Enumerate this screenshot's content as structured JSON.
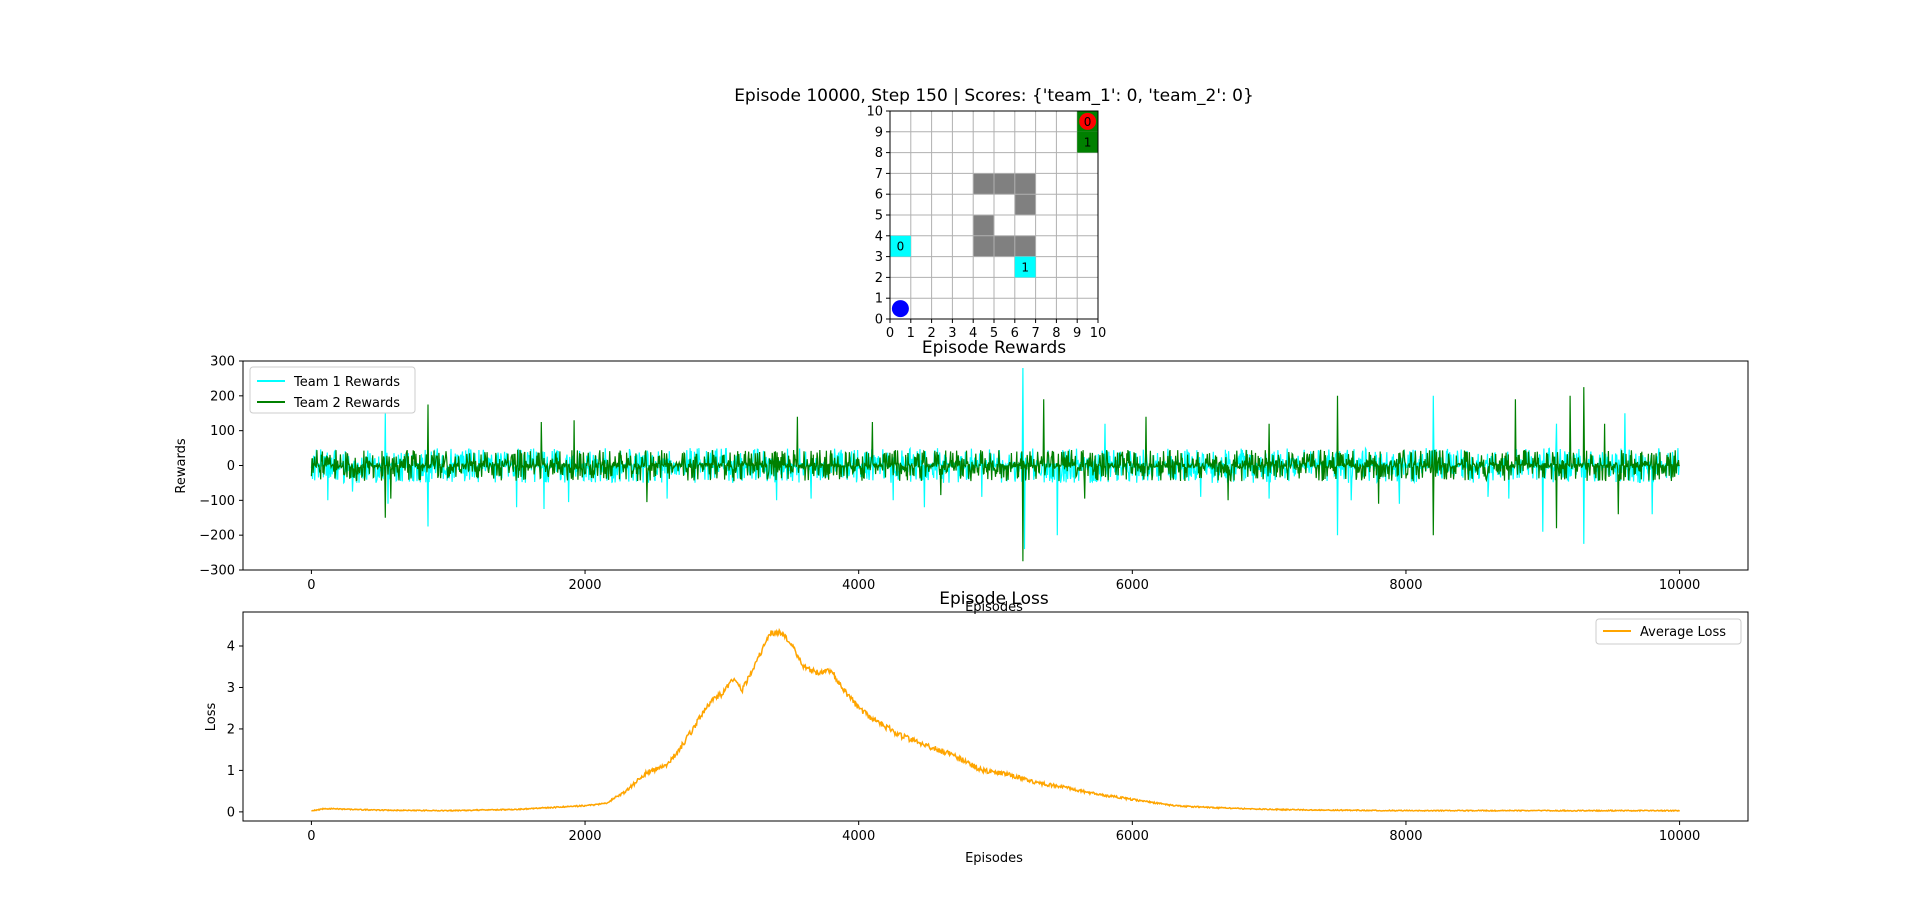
{
  "figure": {
    "grid_title": "Episode 10000, Step 150 | Scores: {'team_1': 0, 'team_2': 0}"
  },
  "chart_data": [
    {
      "type": "heatmap",
      "title": "Episode 10000, Step 150 | Scores: {'team_1': 0, 'team_2': 0}",
      "xlim": [
        0,
        10
      ],
      "ylim": [
        0,
        10
      ],
      "ticks": [
        "0",
        "1",
        "2",
        "3",
        "4",
        "5",
        "6",
        "7",
        "8",
        "9",
        "10"
      ],
      "grid": true,
      "obstacles": [
        [
          4,
          6
        ],
        [
          5,
          6
        ],
        [
          6,
          6
        ],
        [
          6,
          5
        ],
        [
          4,
          4
        ],
        [
          4,
          3
        ],
        [
          5,
          3
        ],
        [
          6,
          3
        ]
      ],
      "team_1_agents": [
        {
          "label": "0",
          "cell": [
            0,
            3
          ],
          "color": "#00ffff"
        },
        {
          "label": "1",
          "cell": [
            6,
            2
          ],
          "color": "#00ffff"
        }
      ],
      "team_2_agents": [
        {
          "label": "0",
          "cell": [
            9,
            9
          ],
          "color": "#008000",
          "marker_color": "#ff0000"
        },
        {
          "label": "1",
          "cell": [
            9,
            8
          ],
          "color": "#008000"
        }
      ],
      "ball": {
        "x": 0.5,
        "y": 0.5,
        "color": "#0000ff"
      }
    },
    {
      "type": "line",
      "title": "Episode Rewards",
      "xlabel": "Episodes",
      "ylabel": "Rewards",
      "xlim": [
        -500,
        10500
      ],
      "ylim": [
        -300,
        300
      ],
      "xticks": [
        0,
        2000,
        4000,
        6000,
        8000,
        10000
      ],
      "yticks": [
        -300,
        -200,
        -100,
        0,
        100,
        200,
        300
      ],
      "ytick_labels": [
        "−300",
        "−200",
        "−100",
        "0",
        "100",
        "200",
        "300"
      ],
      "legend": "top-left",
      "n_episodes": 10000,
      "series": [
        {
          "name": "Team 1 Rewards",
          "color": "#00ffff",
          "typical_range": [
            -50,
            50
          ],
          "spikes": [
            [
              120,
              -100
            ],
            [
              300,
              -75
            ],
            [
              540,
              150
            ],
            [
              560,
              -110
            ],
            [
              850,
              -175
            ],
            [
              1500,
              -120
            ],
            [
              1700,
              -125
            ],
            [
              1880,
              -105
            ],
            [
              2600,
              -95
            ],
            [
              3400,
              -100
            ],
            [
              3650,
              -95
            ],
            [
              4250,
              -100
            ],
            [
              4480,
              -120
            ],
            [
              4900,
              -90
            ],
            [
              5200,
              280
            ],
            [
              5210,
              -240
            ],
            [
              5450,
              -200
            ],
            [
              5800,
              120
            ],
            [
              6500,
              -90
            ],
            [
              7000,
              -95
            ],
            [
              7500,
              -200
            ],
            [
              7600,
              -100
            ],
            [
              7950,
              -110
            ],
            [
              8200,
              200
            ],
            [
              8600,
              -90
            ],
            [
              8750,
              -95
            ],
            [
              9000,
              -190
            ],
            [
              9100,
              120
            ],
            [
              9300,
              -225
            ],
            [
              9600,
              150
            ],
            [
              9800,
              -140
            ]
          ]
        },
        {
          "name": "Team 2 Rewards",
          "color": "#008000",
          "typical_range": [
            -45,
            45
          ],
          "spikes": [
            [
              540,
              -150
            ],
            [
              580,
              -95
            ],
            [
              850,
              175
            ],
            [
              1680,
              125
            ],
            [
              1920,
              130
            ],
            [
              2450,
              -105
            ],
            [
              3550,
              140
            ],
            [
              4100,
              125
            ],
            [
              4600,
              -85
            ],
            [
              5200,
              -275
            ],
            [
              5350,
              190
            ],
            [
              5650,
              -95
            ],
            [
              6100,
              140
            ],
            [
              6700,
              -100
            ],
            [
              7000,
              120
            ],
            [
              7500,
              200
            ],
            [
              7800,
              -110
            ],
            [
              8200,
              -200
            ],
            [
              8800,
              190
            ],
            [
              9100,
              -180
            ],
            [
              9200,
              200
            ],
            [
              9300,
              225
            ],
            [
              9450,
              120
            ],
            [
              9550,
              -140
            ]
          ]
        }
      ]
    },
    {
      "type": "line",
      "title": "Episode Loss",
      "xlabel": "Episodes",
      "ylabel": "Loss",
      "xlim": [
        -500,
        10500
      ],
      "ylim": [
        -0.22,
        4.82
      ],
      "xticks": [
        0,
        2000,
        4000,
        6000,
        8000,
        10000
      ],
      "yticks": [
        0,
        1,
        2,
        3,
        4
      ],
      "legend": "top-right",
      "series": [
        {
          "name": "Average Loss",
          "color": "#ffa500",
          "x": [
            0,
            100,
            500,
            1000,
            1500,
            2000,
            2150,
            2300,
            2450,
            2600,
            2750,
            2900,
            3000,
            3080,
            3150,
            3250,
            3350,
            3420,
            3500,
            3600,
            3700,
            3800,
            3900,
            4000,
            4100,
            4200,
            4300,
            4500,
            4700,
            4900,
            5100,
            5300,
            5500,
            5700,
            6000,
            6300,
            6600,
            7000,
            7500,
            8000,
            9000,
            10000
          ],
          "y": [
            0.02,
            0.08,
            0.04,
            0.03,
            0.06,
            0.15,
            0.2,
            0.5,
            0.95,
            1.1,
            1.8,
            2.6,
            2.85,
            3.2,
            2.95,
            3.6,
            4.3,
            4.35,
            4.1,
            3.5,
            3.35,
            3.4,
            2.9,
            2.5,
            2.25,
            2.05,
            1.85,
            1.6,
            1.35,
            1.0,
            0.9,
            0.7,
            0.6,
            0.45,
            0.3,
            0.15,
            0.1,
            0.06,
            0.04,
            0.03,
            0.03,
            0.03
          ],
          "noise": 0.07
        }
      ]
    }
  ]
}
